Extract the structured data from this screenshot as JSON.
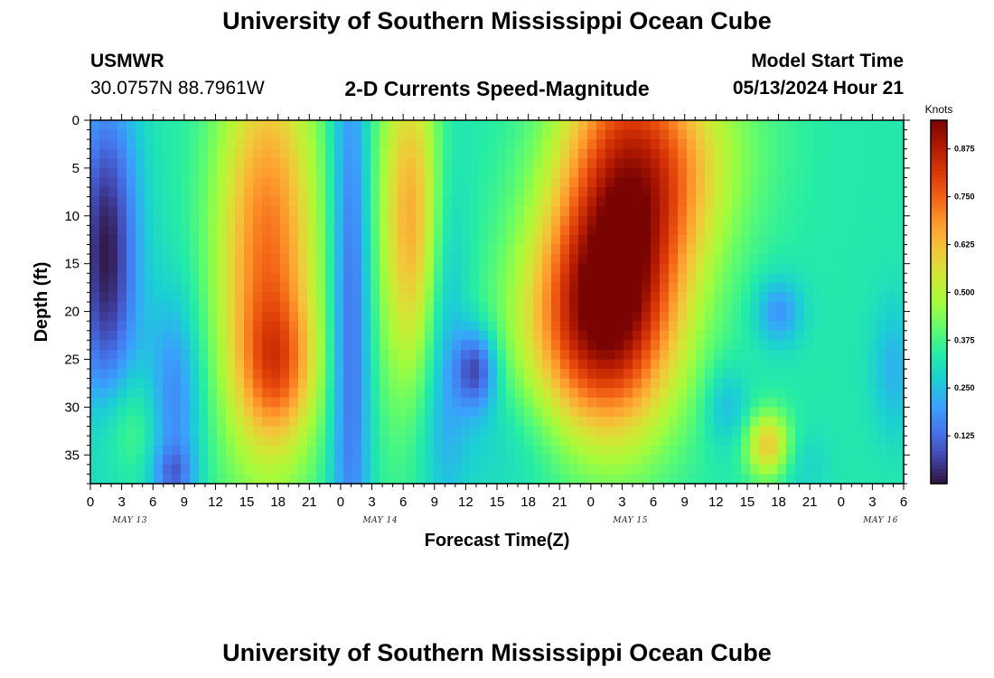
{
  "header": {
    "title": "University of Southern Mississippi Ocean Cube",
    "station": "USMWR",
    "coords": "30.0757N  88.7961W",
    "subtitle": "2-D Currents Speed-Magnitude",
    "model_start_label": "Model Start Time",
    "model_start_value": "05/13/2024 Hour 21"
  },
  "footer": {
    "title": "University of Southern Mississippi Ocean Cube"
  },
  "chart_data": {
    "type": "heatmap",
    "xlabel": "Forecast Time(Z)",
    "ylabel": "Depth (ft)",
    "x_start": 0,
    "x_end": 78,
    "x_ticks": [
      "0",
      "3",
      "6",
      "9",
      "12",
      "15",
      "18",
      "21",
      "0",
      "3",
      "6",
      "9",
      "12",
      "15",
      "18",
      "21",
      "0",
      "3",
      "6",
      "9",
      "12",
      "15",
      "18",
      "21",
      "0",
      "3",
      "6"
    ],
    "day_labels": [
      {
        "label": "MAY 13",
        "hour": 0
      },
      {
        "label": "MAY 14",
        "hour": 24
      },
      {
        "label": "MAY 15",
        "hour": 48
      },
      {
        "label": "MAY 16",
        "hour": 72
      }
    ],
    "y_range": [
      0,
      38
    ],
    "y_ticks": [
      0,
      5,
      10,
      15,
      20,
      25,
      30,
      35
    ],
    "colorbar": {
      "unit": "Knots",
      "range": [
        0.0,
        0.95
      ],
      "ticks": [
        "0.125",
        "0.250",
        "0.375",
        "0.500",
        "0.625",
        "0.750",
        "0.875"
      ],
      "colors": [
        "#30123b",
        "#4145ab",
        "#4675ed",
        "#39a2fc",
        "#1bcfd4",
        "#24eca6",
        "#61fc6c",
        "#a4fc3b",
        "#d1e834",
        "#f3c63a",
        "#fe9b2d",
        "#f36315",
        "#d93806",
        "#b11901",
        "#7a0402"
      ]
    },
    "field_features": [
      {
        "x": 1.5,
        "y": 14,
        "sx": 2.2,
        "sy": 12,
        "v": -0.32
      },
      {
        "x": 8,
        "y": 30,
        "sx": 1.8,
        "sy": 8,
        "v": -0.18
      },
      {
        "x": 8,
        "y": 37,
        "sx": 1.4,
        "sy": 2,
        "v": -0.12
      },
      {
        "x": 3.5,
        "y": 32,
        "sx": 2.5,
        "sy": 4,
        "v": 0.1
      },
      {
        "x": 17,
        "y": 14,
        "sx": 3.5,
        "sy": 16,
        "v": 0.4
      },
      {
        "x": 18,
        "y": 26,
        "sx": 2.5,
        "sy": 5,
        "v": 0.2
      },
      {
        "x": 25,
        "y": 20,
        "sx": 1.4,
        "sy": 25,
        "v": -0.24
      },
      {
        "x": 28,
        "y": 10,
        "sx": 2.2,
        "sy": 25,
        "v": 0.06
      },
      {
        "x": 31,
        "y": 10,
        "sx": 2.0,
        "sy": 12,
        "v": 0.3
      },
      {
        "x": 34,
        "y": 22,
        "sx": 1.5,
        "sy": 14,
        "v": -0.12
      },
      {
        "x": 37,
        "y": 26,
        "sx": 1.4,
        "sy": 3,
        "v": -0.25
      },
      {
        "x": 51,
        "y": 5,
        "sx": 4.0,
        "sy": 14,
        "v": 0.25
      },
      {
        "x": 50,
        "y": 15,
        "sx": 5,
        "sy": 12,
        "v": 0.32
      },
      {
        "x": 48,
        "y": 22,
        "sx": 5,
        "sy": 8,
        "v": 0.3
      },
      {
        "x": 56,
        "y": 5,
        "sx": 4.0,
        "sy": 8,
        "v": 0.2
      },
      {
        "x": 62,
        "y": 2,
        "sx": 4.5,
        "sy": 8,
        "v": 0.05
      },
      {
        "x": 66,
        "y": 20,
        "sx": 1.6,
        "sy": 2.5,
        "v": -0.15
      },
      {
        "x": 61,
        "y": 30,
        "sx": 1.5,
        "sy": 3,
        "v": -0.1
      },
      {
        "x": 65,
        "y": 34,
        "sx": 1.5,
        "sy": 2.5,
        "v": 0.28
      },
      {
        "x": 68,
        "y": 36,
        "sx": 2,
        "sy": 2.5,
        "v": -0.05
      },
      {
        "x": 77,
        "y": 26,
        "sx": 1.5,
        "sy": 5,
        "v": -0.1
      },
      {
        "x": 40,
        "y": 33,
        "sx": 5,
        "sy": 5,
        "v": -0.06
      }
    ]
  }
}
